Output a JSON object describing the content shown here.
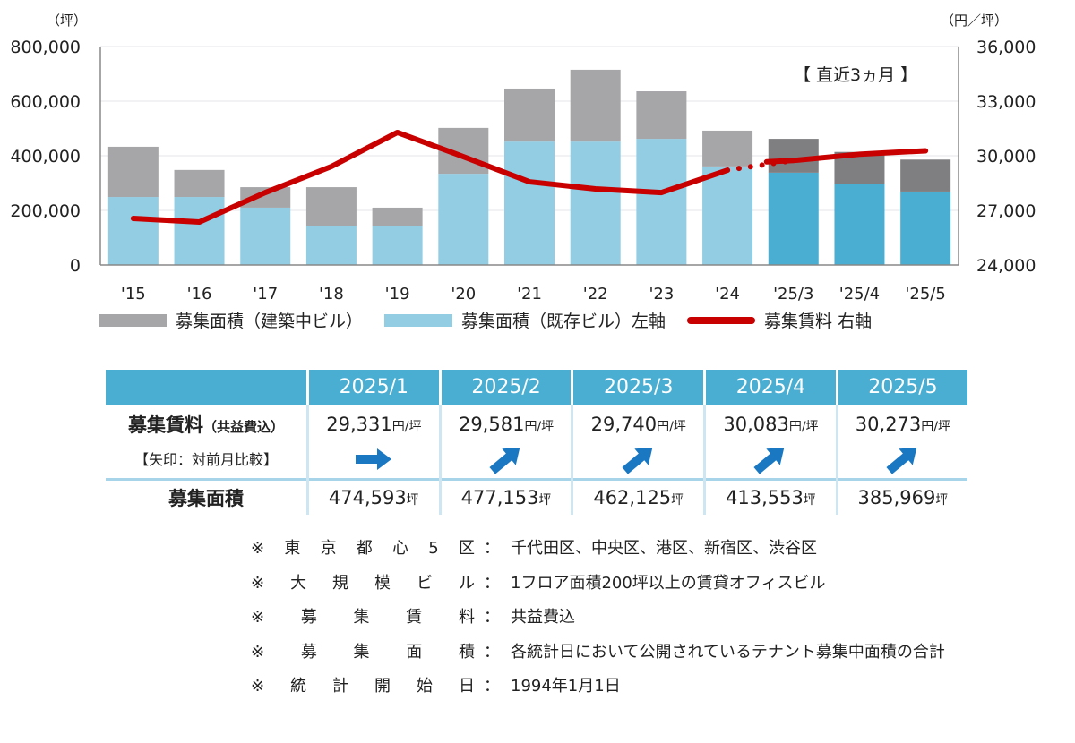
{
  "chart_data": {
    "type": "bar+line",
    "categories": [
      "'15",
      "'16",
      "'17",
      "'18",
      "'19",
      "'20",
      "'21",
      "'22",
      "'23",
      "'24",
      "'25/3",
      "'25/4",
      "'25/5"
    ],
    "series": [
      {
        "name": "募集面積（建築中ビル）",
        "axis": "left",
        "stack": true,
        "values": [
          184000,
          99000,
          75000,
          141000,
          66000,
          168000,
          194000,
          263000,
          174000,
          131000,
          124000,
          116000,
          117000
        ],
        "color": "#a6a5a8",
        "recent_color": "#7f7f82"
      },
      {
        "name": "募集面積（既存ビル）左軸",
        "axis": "left",
        "stack": true,
        "values": [
          249000,
          249000,
          210000,
          144000,
          144000,
          334000,
          452000,
          452000,
          462000,
          361000,
          338000,
          298000,
          269000
        ],
        "color": "#92cde3",
        "recent_color": "#4aaed3"
      },
      {
        "name": "募集賃料 右軸",
        "axis": "right",
        "type": "line",
        "values": [
          26560,
          26360,
          27980,
          29410,
          31280,
          29950,
          28570,
          28180,
          27980,
          29210,
          29740,
          30083,
          30273
        ],
        "color": "#c80000"
      }
    ],
    "left_axis": {
      "unit": "（坪）",
      "ylim": [
        0,
        800000
      ],
      "ticks": [
        "0",
        "200,000",
        "400,000",
        "600,000",
        "800,000"
      ]
    },
    "right_axis": {
      "unit": "（円／坪）",
      "ylim": [
        24000,
        36000
      ],
      "ticks": [
        "24,000",
        "27,000",
        "30,000",
        "33,000",
        "36,000"
      ]
    },
    "annotation": "【 直近3ヵ月 】",
    "grid": true,
    "legend": "bottom"
  },
  "table": {
    "headers": [
      "2025/1",
      "2025/2",
      "2025/3",
      "2025/4",
      "2025/5"
    ],
    "rent_label": "募集賃料",
    "rent_sub": "（共益費込）",
    "arrow_label": "【矢印：対前月比較】",
    "rent_unit": "円/坪",
    "rents": [
      "29,331",
      "29,581",
      "29,740",
      "30,083",
      "30,273"
    ],
    "arrows": [
      "right",
      "up-right",
      "up-right",
      "up-right",
      "up-right"
    ],
    "area_label": "募集面積",
    "area_unit": "坪",
    "areas": [
      "474,593",
      "477,153",
      "462,125",
      "413,553",
      "385,969"
    ]
  },
  "notes": [
    {
      "key": [
        "※",
        "東",
        "京",
        "都",
        "心",
        "5",
        "区"
      ],
      "value": "千代田区、中央区、港区、新宿区、渋谷区"
    },
    {
      "key": [
        "※",
        "大",
        "規",
        "模",
        "ビ",
        "ル"
      ],
      "value": "1フロア面積200坪以上の賃貸オフィスビル"
    },
    {
      "key": [
        "※",
        "募",
        "集",
        "賃",
        "料"
      ],
      "value": "共益費込"
    },
    {
      "key": [
        "※",
        "募",
        "集",
        "面",
        "積"
      ],
      "value": "各統計日において公開されているテナント募集中面積の合計"
    },
    {
      "key": [
        "※",
        "統",
        "計",
        "開",
        "始",
        "日"
      ],
      "value": "1994年1月1日"
    }
  ]
}
